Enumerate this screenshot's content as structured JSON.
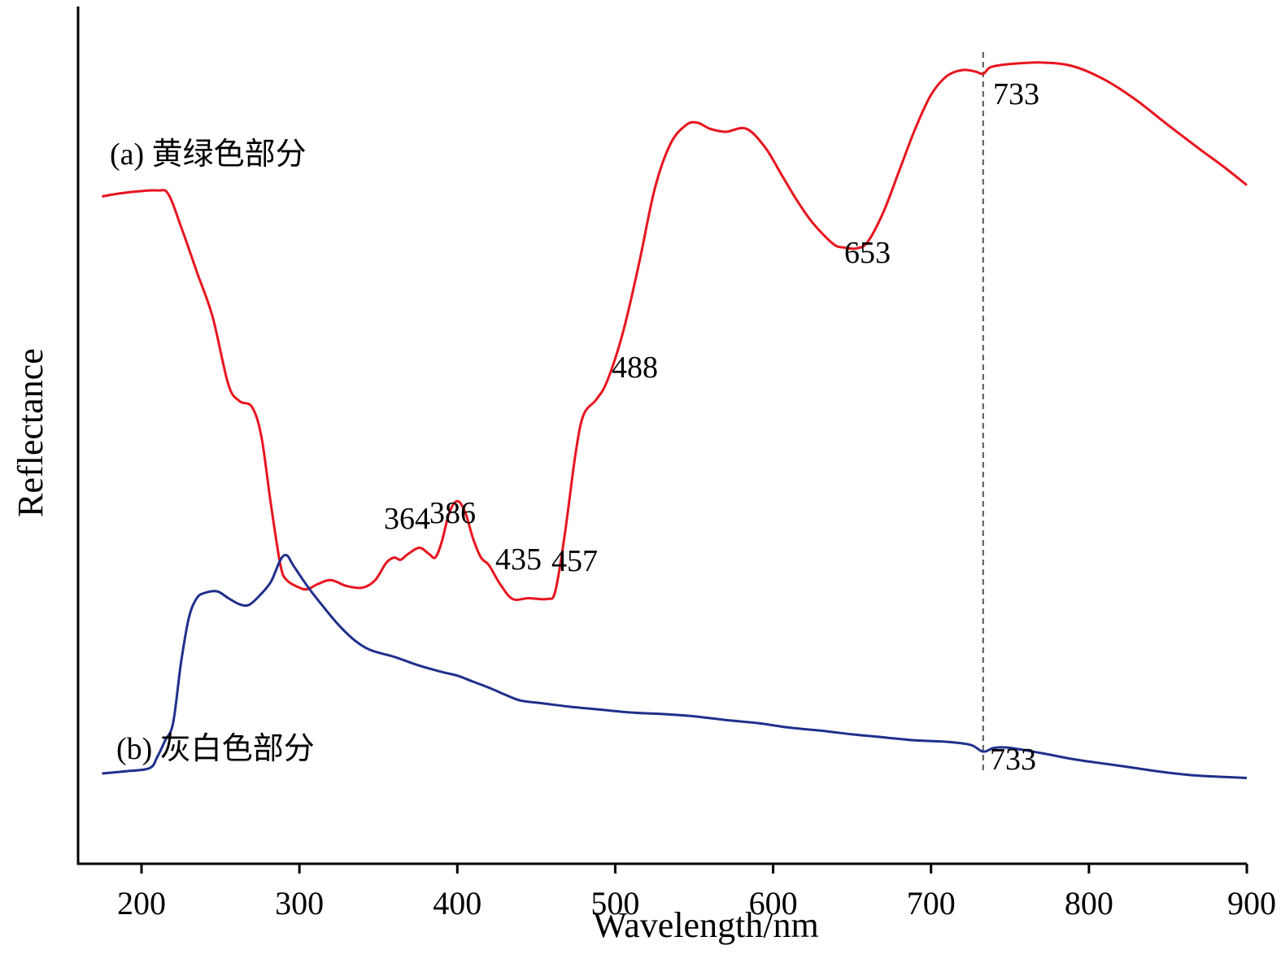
{
  "chart_data": {
    "type": "line",
    "xlabel": "Wavelength/nm",
    "ylabel": "Reflectance",
    "xlim": [
      175,
      900
    ],
    "ylim": [
      0,
      100
    ],
    "y_ticks_shown": false,
    "x_ticks": [
      200,
      300,
      400,
      500,
      600,
      700,
      800,
      900
    ],
    "x_tick_labels": [
      "200",
      "300",
      "400",
      "500",
      "600",
      "700",
      "800",
      "900"
    ],
    "reference_line": {
      "x": 733,
      "style": "dashed"
    },
    "colors": {
      "series_a": "#e8141e",
      "series_b": "#1f2f8c",
      "axis": "#000000",
      "reference": "#555555"
    },
    "series": [
      {
        "name": "(a) 黄绿色部分",
        "color": "#e8141e",
        "points": [
          [
            175,
            82.0
          ],
          [
            190,
            82.5
          ],
          [
            210,
            82.8
          ],
          [
            217,
            82.3
          ],
          [
            225,
            78.0
          ],
          [
            235,
            72.0
          ],
          [
            245,
            66.0
          ],
          [
            255,
            57.0
          ],
          [
            262,
            54.8
          ],
          [
            270,
            54.0
          ],
          [
            276,
            50.0
          ],
          [
            282,
            41.0
          ],
          [
            288,
            33.0
          ],
          [
            292,
            31.0
          ],
          [
            300,
            30.0
          ],
          [
            305,
            29.8
          ],
          [
            312,
            30.5
          ],
          [
            320,
            31.0
          ],
          [
            330,
            30.2
          ],
          [
            340,
            30.0
          ],
          [
            348,
            31.0
          ],
          [
            355,
            33.3
          ],
          [
            360,
            34.0
          ],
          [
            364,
            33.7
          ],
          [
            369,
            34.5
          ],
          [
            376,
            35.3
          ],
          [
            382,
            34.5
          ],
          [
            386,
            34.0
          ],
          [
            390,
            36.0
          ],
          [
            395,
            40.0
          ],
          [
            400,
            41.5
          ],
          [
            405,
            40.0
          ],
          [
            410,
            36.5
          ],
          [
            415,
            34.0
          ],
          [
            420,
            33.0
          ],
          [
            427,
            30.5
          ],
          [
            435,
            28.5
          ],
          [
            445,
            28.6
          ],
          [
            457,
            28.5
          ],
          [
            462,
            29.5
          ],
          [
            468,
            37.0
          ],
          [
            475,
            48.0
          ],
          [
            480,
            53.0
          ],
          [
            488,
            55.0
          ],
          [
            495,
            57.5
          ],
          [
            505,
            64.0
          ],
          [
            515,
            73.0
          ],
          [
            525,
            83.0
          ],
          [
            535,
            89.0
          ],
          [
            545,
            91.5
          ],
          [
            552,
            91.8
          ],
          [
            560,
            91.0
          ],
          [
            570,
            90.6
          ],
          [
            583,
            91.0
          ],
          [
            595,
            88.5
          ],
          [
            605,
            85.0
          ],
          [
            615,
            81.5
          ],
          [
            625,
            78.5
          ],
          [
            638,
            75.7
          ],
          [
            645,
            75.2
          ],
          [
            653,
            75.1
          ],
          [
            660,
            76.0
          ],
          [
            670,
            80.0
          ],
          [
            680,
            85.5
          ],
          [
            690,
            91.0
          ],
          [
            700,
            95.5
          ],
          [
            710,
            98.0
          ],
          [
            720,
            98.8
          ],
          [
            728,
            98.6
          ],
          [
            733,
            98.3
          ],
          [
            738,
            99.2
          ],
          [
            750,
            99.6
          ],
          [
            770,
            99.8
          ],
          [
            790,
            99.3
          ],
          [
            810,
            97.5
          ],
          [
            830,
            94.8
          ],
          [
            850,
            91.5
          ],
          [
            870,
            88.3
          ],
          [
            885,
            86.0
          ],
          [
            900,
            83.5
          ]
        ]
      },
      {
        "name": "(b) 灰白色部分",
        "color": "#1f2f8c",
        "points": [
          [
            175,
            5.3
          ],
          [
            190,
            5.6
          ],
          [
            205,
            6.0
          ],
          [
            210,
            7.5
          ],
          [
            215,
            9.7
          ],
          [
            220,
            12.0
          ],
          [
            225,
            20.0
          ],
          [
            230,
            26.0
          ],
          [
            235,
            28.6
          ],
          [
            240,
            29.3
          ],
          [
            248,
            29.5
          ],
          [
            255,
            28.6
          ],
          [
            262,
            27.8
          ],
          [
            268,
            27.7
          ],
          [
            275,
            29.0
          ],
          [
            282,
            30.8
          ],
          [
            288,
            33.7
          ],
          [
            292,
            34.3
          ],
          [
            296,
            33.0
          ],
          [
            305,
            30.2
          ],
          [
            315,
            27.5
          ],
          [
            325,
            25.0
          ],
          [
            335,
            23.0
          ],
          [
            345,
            21.7
          ],
          [
            360,
            20.8
          ],
          [
            375,
            19.7
          ],
          [
            390,
            18.8
          ],
          [
            400,
            18.3
          ],
          [
            410,
            17.5
          ],
          [
            420,
            16.7
          ],
          [
            430,
            15.8
          ],
          [
            440,
            15.0
          ],
          [
            455,
            14.6
          ],
          [
            470,
            14.2
          ],
          [
            490,
            13.8
          ],
          [
            510,
            13.4
          ],
          [
            530,
            13.2
          ],
          [
            550,
            12.9
          ],
          [
            570,
            12.4
          ],
          [
            590,
            12.0
          ],
          [
            610,
            11.4
          ],
          [
            630,
            11.0
          ],
          [
            650,
            10.5
          ],
          [
            670,
            10.1
          ],
          [
            690,
            9.7
          ],
          [
            710,
            9.5
          ],
          [
            725,
            9.1
          ],
          [
            733,
            8.2
          ],
          [
            740,
            8.7
          ],
          [
            750,
            8.7
          ],
          [
            770,
            8.0
          ],
          [
            790,
            7.2
          ],
          [
            810,
            6.6
          ],
          [
            830,
            6.0
          ],
          [
            850,
            5.4
          ],
          [
            870,
            5.0
          ],
          [
            900,
            4.7
          ]
        ]
      }
    ],
    "annotations": [
      {
        "series": "a",
        "text": "364",
        "x": 364
      },
      {
        "series": "a",
        "text": "386",
        "x": 386
      },
      {
        "series": "a",
        "text": "435",
        "x": 435
      },
      {
        "series": "a",
        "text": "457",
        "x": 457
      },
      {
        "series": "a",
        "text": "488",
        "x": 488
      },
      {
        "series": "a",
        "text": "653",
        "x": 653
      },
      {
        "series": "a",
        "text": "733",
        "x": 733
      },
      {
        "series": "b",
        "text": "733",
        "x": 733
      }
    ]
  }
}
